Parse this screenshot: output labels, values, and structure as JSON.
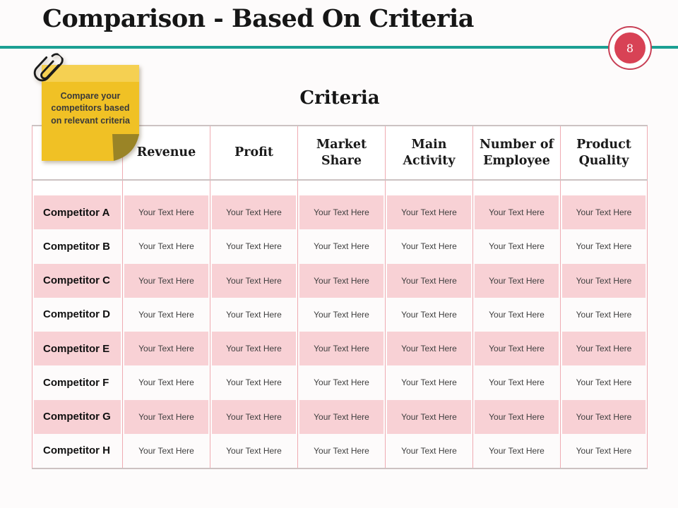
{
  "header": {
    "title": "Comparison - Based On Criteria",
    "slide_number": "8"
  },
  "note": {
    "text": "Compare your competitors based on relevant criteria"
  },
  "table": {
    "heading": "Criteria",
    "columns": [
      "Revenue",
      "Profit",
      "Market Share",
      "Main Activity",
      "Number of Employee",
      "Product Quality"
    ],
    "rows": [
      {
        "label": "Competitor A",
        "cells": [
          "Your Text Here",
          "Your Text Here",
          "Your Text Here",
          "Your Text Here",
          "Your Text Here",
          "Your Text Here"
        ]
      },
      {
        "label": "Competitor B",
        "cells": [
          "Your Text Here",
          "Your Text Here",
          "Your Text Here",
          "Your Text Here",
          "Your Text Here",
          "Your Text Here"
        ]
      },
      {
        "label": "Competitor C",
        "cells": [
          "Your Text Here",
          "Your Text Here",
          "Your Text Here",
          "Your Text Here",
          "Your Text Here",
          "Your Text Here"
        ]
      },
      {
        "label": "Competitor D",
        "cells": [
          "Your Text Here",
          "Your Text Here",
          "Your Text Here",
          "Your Text Here",
          "Your Text Here",
          "Your Text Here"
        ]
      },
      {
        "label": "Competitor E",
        "cells": [
          "Your Text Here",
          "Your Text Here",
          "Your Text Here",
          "Your Text Here",
          "Your Text Here",
          "Your Text Here"
        ]
      },
      {
        "label": "Competitor F",
        "cells": [
          "Your Text Here",
          "Your Text Here",
          "Your Text Here",
          "Your Text Here",
          "Your Text Here",
          "Your Text Here"
        ]
      },
      {
        "label": "Competitor G",
        "cells": [
          "Your Text Here",
          "Your Text Here",
          "Your Text Here",
          "Your Text Here",
          "Your Text Here",
          "Your Text Here"
        ]
      },
      {
        "label": "Competitor H",
        "cells": [
          "Your Text Here",
          "Your Text Here",
          "Your Text Here",
          "Your Text Here",
          "Your Text Here",
          "Your Text Here"
        ]
      }
    ]
  },
  "colors": {
    "accent_teal": "#1ba093",
    "badge_red": "#d84255",
    "row_pink": "#f8d1d5",
    "grid_pink": "#efabb2",
    "grid_gray": "#ccc2c2",
    "note_body": "#f0c125",
    "note_strip": "#f5d052",
    "note_fold": "#9a8426"
  }
}
